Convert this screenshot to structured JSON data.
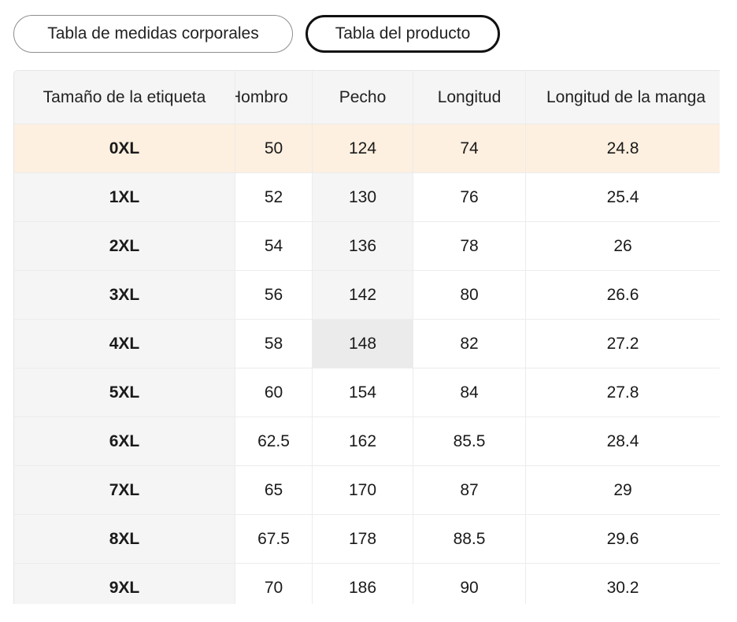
{
  "tabs": [
    {
      "label": "Tabla de medidas corporales",
      "active": false
    },
    {
      "label": "Tabla del producto",
      "active": true
    }
  ],
  "table": {
    "headers": [
      "Tamaño de la etiqueta",
      "Hombro",
      "Pecho",
      "Longitud",
      "Longitud de la manga"
    ],
    "rows": [
      [
        "0XL",
        "50",
        "124",
        "74",
        "24.8"
      ],
      [
        "1XL",
        "52",
        "130",
        "76",
        "25.4"
      ],
      [
        "2XL",
        "54",
        "136",
        "78",
        "26"
      ],
      [
        "3XL",
        "56",
        "142",
        "80",
        "26.6"
      ],
      [
        "4XL",
        "58",
        "148",
        "82",
        "27.2"
      ],
      [
        "5XL",
        "60",
        "154",
        "84",
        "27.8"
      ],
      [
        "6XL",
        "62.5",
        "162",
        "85.5",
        "28.4"
      ],
      [
        "7XL",
        "65",
        "170",
        "87",
        "29"
      ],
      [
        "8XL",
        "67.5",
        "178",
        "88.5",
        "29.6"
      ],
      [
        "9XL",
        "70",
        "186",
        "90",
        "30.2"
      ]
    ]
  },
  "colors": {
    "highlight_row": "#fdf0e0",
    "header_bg": "#f5f5f5",
    "hover_cell": "#ebebeb"
  }
}
